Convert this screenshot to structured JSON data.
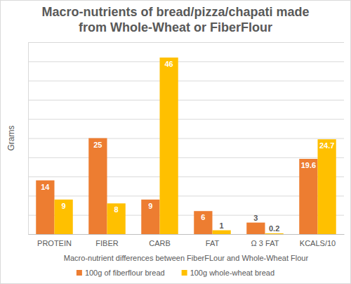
{
  "chart_data": {
    "type": "bar",
    "title": "Macro-nutrients of bread/pizza/chapati  made from Whole-Wheat or FiberFlour",
    "y_label": "Grams",
    "x_label": "Macro-nutrient differences between FiberFLour and Whole-Wheat Flour",
    "categories": [
      "PROTEIN",
      "FIBER",
      "CARB",
      "FAT",
      "Ω 3 FAT",
      "KCALS/10"
    ],
    "series": [
      {
        "name": "100g of fiberflour bread",
        "color": "#ed7d31",
        "values": [
          14,
          25,
          9,
          6,
          3,
          19.6
        ]
      },
      {
        "name": "100g whole-wheat bread",
        "color": "#ffc000",
        "values": [
          9,
          8,
          46,
          1,
          0.2,
          24.7
        ]
      }
    ],
    "ylim": [
      0,
      50
    ],
    "yticks": [
      0,
      5,
      10,
      15,
      20,
      25,
      30,
      35,
      40,
      45,
      50
    ],
    "grid": true,
    "tick_labels": "x",
    "data_labels": true,
    "legend": "bottom"
  }
}
